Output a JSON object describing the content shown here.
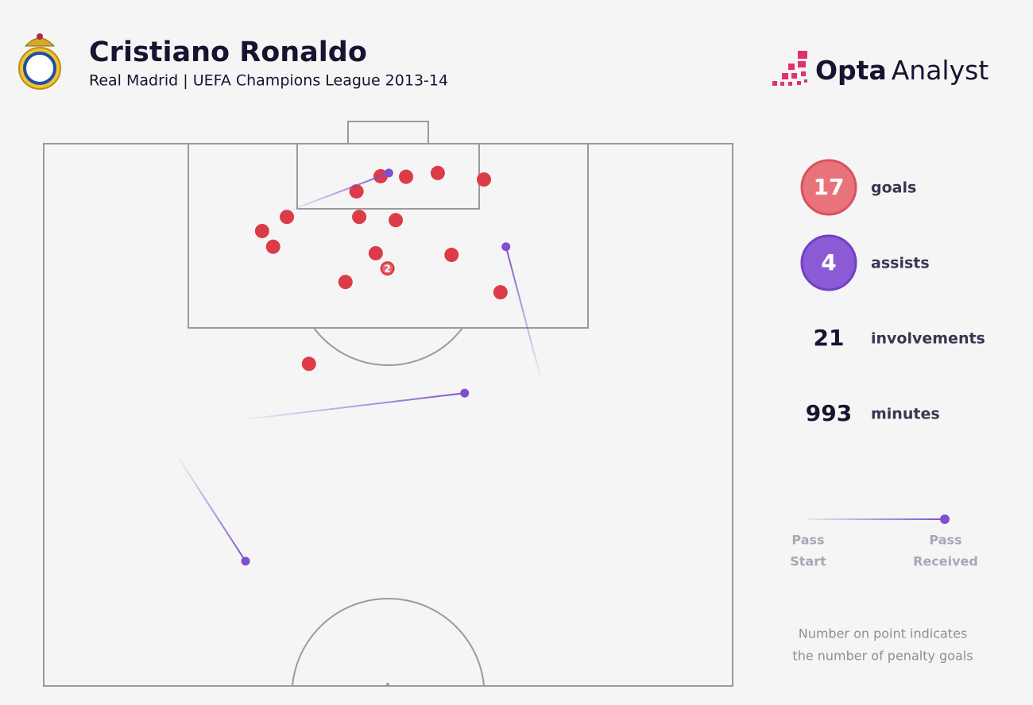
{
  "header": {
    "title": "Cristiano Ronaldo",
    "subtitle": "Real Madrid | UEFA Champions League 2013-14"
  },
  "brand": {
    "name": "Opta",
    "suffix": "Analyst"
  },
  "chart_data": {
    "type": "scatter",
    "xlim": [
      0,
      100
    ],
    "ylim": [
      0,
      100
    ],
    "series": [
      {
        "name": "goals",
        "color": "#dc3b47",
        "x": [
          48.9,
          52.6,
          57.2,
          63.9,
          45.4,
          35.3,
          45.8,
          51.1,
          31.7,
          33.3,
          48.2,
          59.2,
          49.9,
          43.8,
          66.3,
          38.5
        ],
        "values": [
          6.0,
          6.1,
          5.4,
          6.6,
          8.8,
          13.5,
          13.5,
          14.1,
          16.1,
          19.0,
          20.2,
          20.5,
          23.0,
          25.5,
          27.4,
          40.6
        ],
        "penalties": [
          null,
          null,
          null,
          null,
          null,
          null,
          null,
          null,
          null,
          null,
          null,
          null,
          2,
          null,
          null,
          null
        ]
      },
      {
        "name": "assists",
        "color": "#7e4fd0",
        "x_start": [
          35.8,
          72.1,
          29.4,
          19.6
        ],
        "y_start": [
          12.3,
          43.0,
          50.8,
          58.0
        ],
        "x": [
          50.1,
          67.1,
          61.1,
          29.3
        ],
        "values": [
          5.4,
          19.0,
          46.0,
          77.0
        ]
      }
    ]
  },
  "stats": [
    {
      "value": 17,
      "label": "goals",
      "fill": "#e8737a",
      "stroke": "#d9525e",
      "text": "#ffffff"
    },
    {
      "value": 4,
      "label": "assists",
      "fill": "#8b5bd6",
      "stroke": "#7240c4",
      "text": "#ffffff"
    },
    {
      "value": 21,
      "label": "involvements",
      "fill": null,
      "stroke": null,
      "text": "#1a1230"
    },
    {
      "value": 993,
      "label": "minutes",
      "fill": null,
      "stroke": null,
      "text": "#1a1230"
    }
  ],
  "legend": {
    "start": [
      "Pass",
      "Start"
    ],
    "end": [
      "Pass",
      "Received"
    ]
  },
  "note": [
    "Number on point indicates",
    "the number of penalty goals"
  ]
}
